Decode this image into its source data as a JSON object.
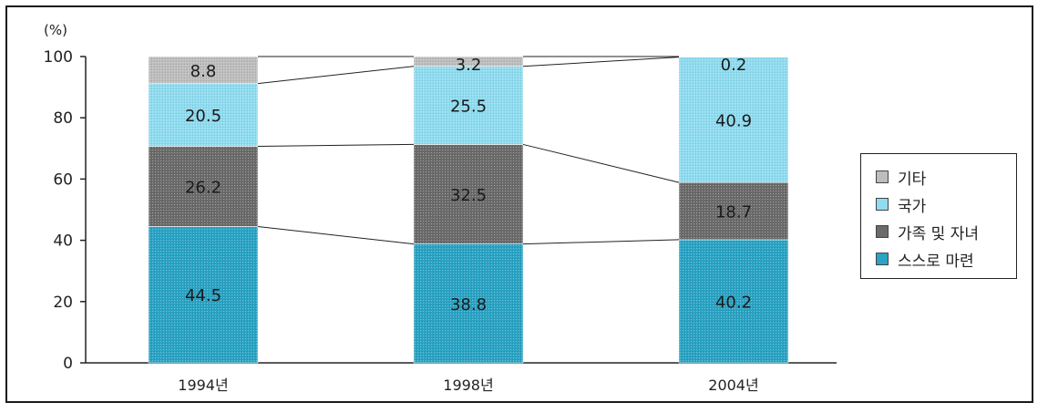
{
  "chart_data": {
    "type": "bar",
    "stacked": true,
    "unit_label": "(%)",
    "categories": [
      "1994년",
      "1998년",
      "2004년"
    ],
    "ylim": [
      0,
      100
    ],
    "yticks": [
      0,
      20,
      40,
      60,
      80,
      100
    ],
    "series": [
      {
        "name": "스스로 마련",
        "values": [
          44.5,
          38.8,
          40.2
        ],
        "color": "#2aa3c4"
      },
      {
        "name": "가족 및 자녀",
        "values": [
          26.2,
          32.5,
          18.7
        ],
        "color": "#6b6b6b"
      },
      {
        "name": "국가",
        "values": [
          20.5,
          25.5,
          40.9
        ],
        "color": "#8fdcf0"
      },
      {
        "name": "기타",
        "values": [
          8.8,
          3.2,
          0.2
        ],
        "color": "#bdbdbd"
      }
    ],
    "legend_position": "right",
    "connector_lines": true
  }
}
